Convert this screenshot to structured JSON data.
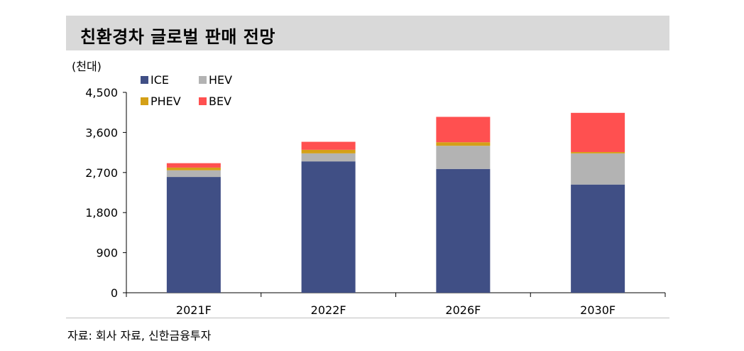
{
  "title": "친환경차 글로벌 판매 전망",
  "unit_label": "(천대)",
  "source": "자료: 회사 자료, 신한금융투자",
  "colors": {
    "ICE": "#404f85",
    "HEV": "#b3b3b3",
    "PHEV": "#d4a017",
    "BEV": "#ff5050",
    "title_bg": "#d9d9d9"
  },
  "chart_data": {
    "type": "bar",
    "stacked": true,
    "categories": [
      "2021F",
      "2022F",
      "2026F",
      "2030F"
    ],
    "series": [
      {
        "name": "ICE",
        "values": [
          2600,
          2950,
          2780,
          2430
        ]
      },
      {
        "name": "HEV",
        "values": [
          150,
          180,
          520,
          700
        ]
      },
      {
        "name": "PHEV",
        "values": [
          60,
          80,
          80,
          30
        ]
      },
      {
        "name": "BEV",
        "values": [
          100,
          180,
          570,
          880
        ]
      }
    ],
    "ylim": [
      0,
      4500
    ],
    "yticks": [
      0,
      900,
      1800,
      2700,
      3600,
      4500
    ],
    "ytick_labels": [
      "0",
      "900",
      "1,800",
      "2,700",
      "3,600",
      "4,500"
    ],
    "legend_position": "top-left",
    "grid": false
  }
}
